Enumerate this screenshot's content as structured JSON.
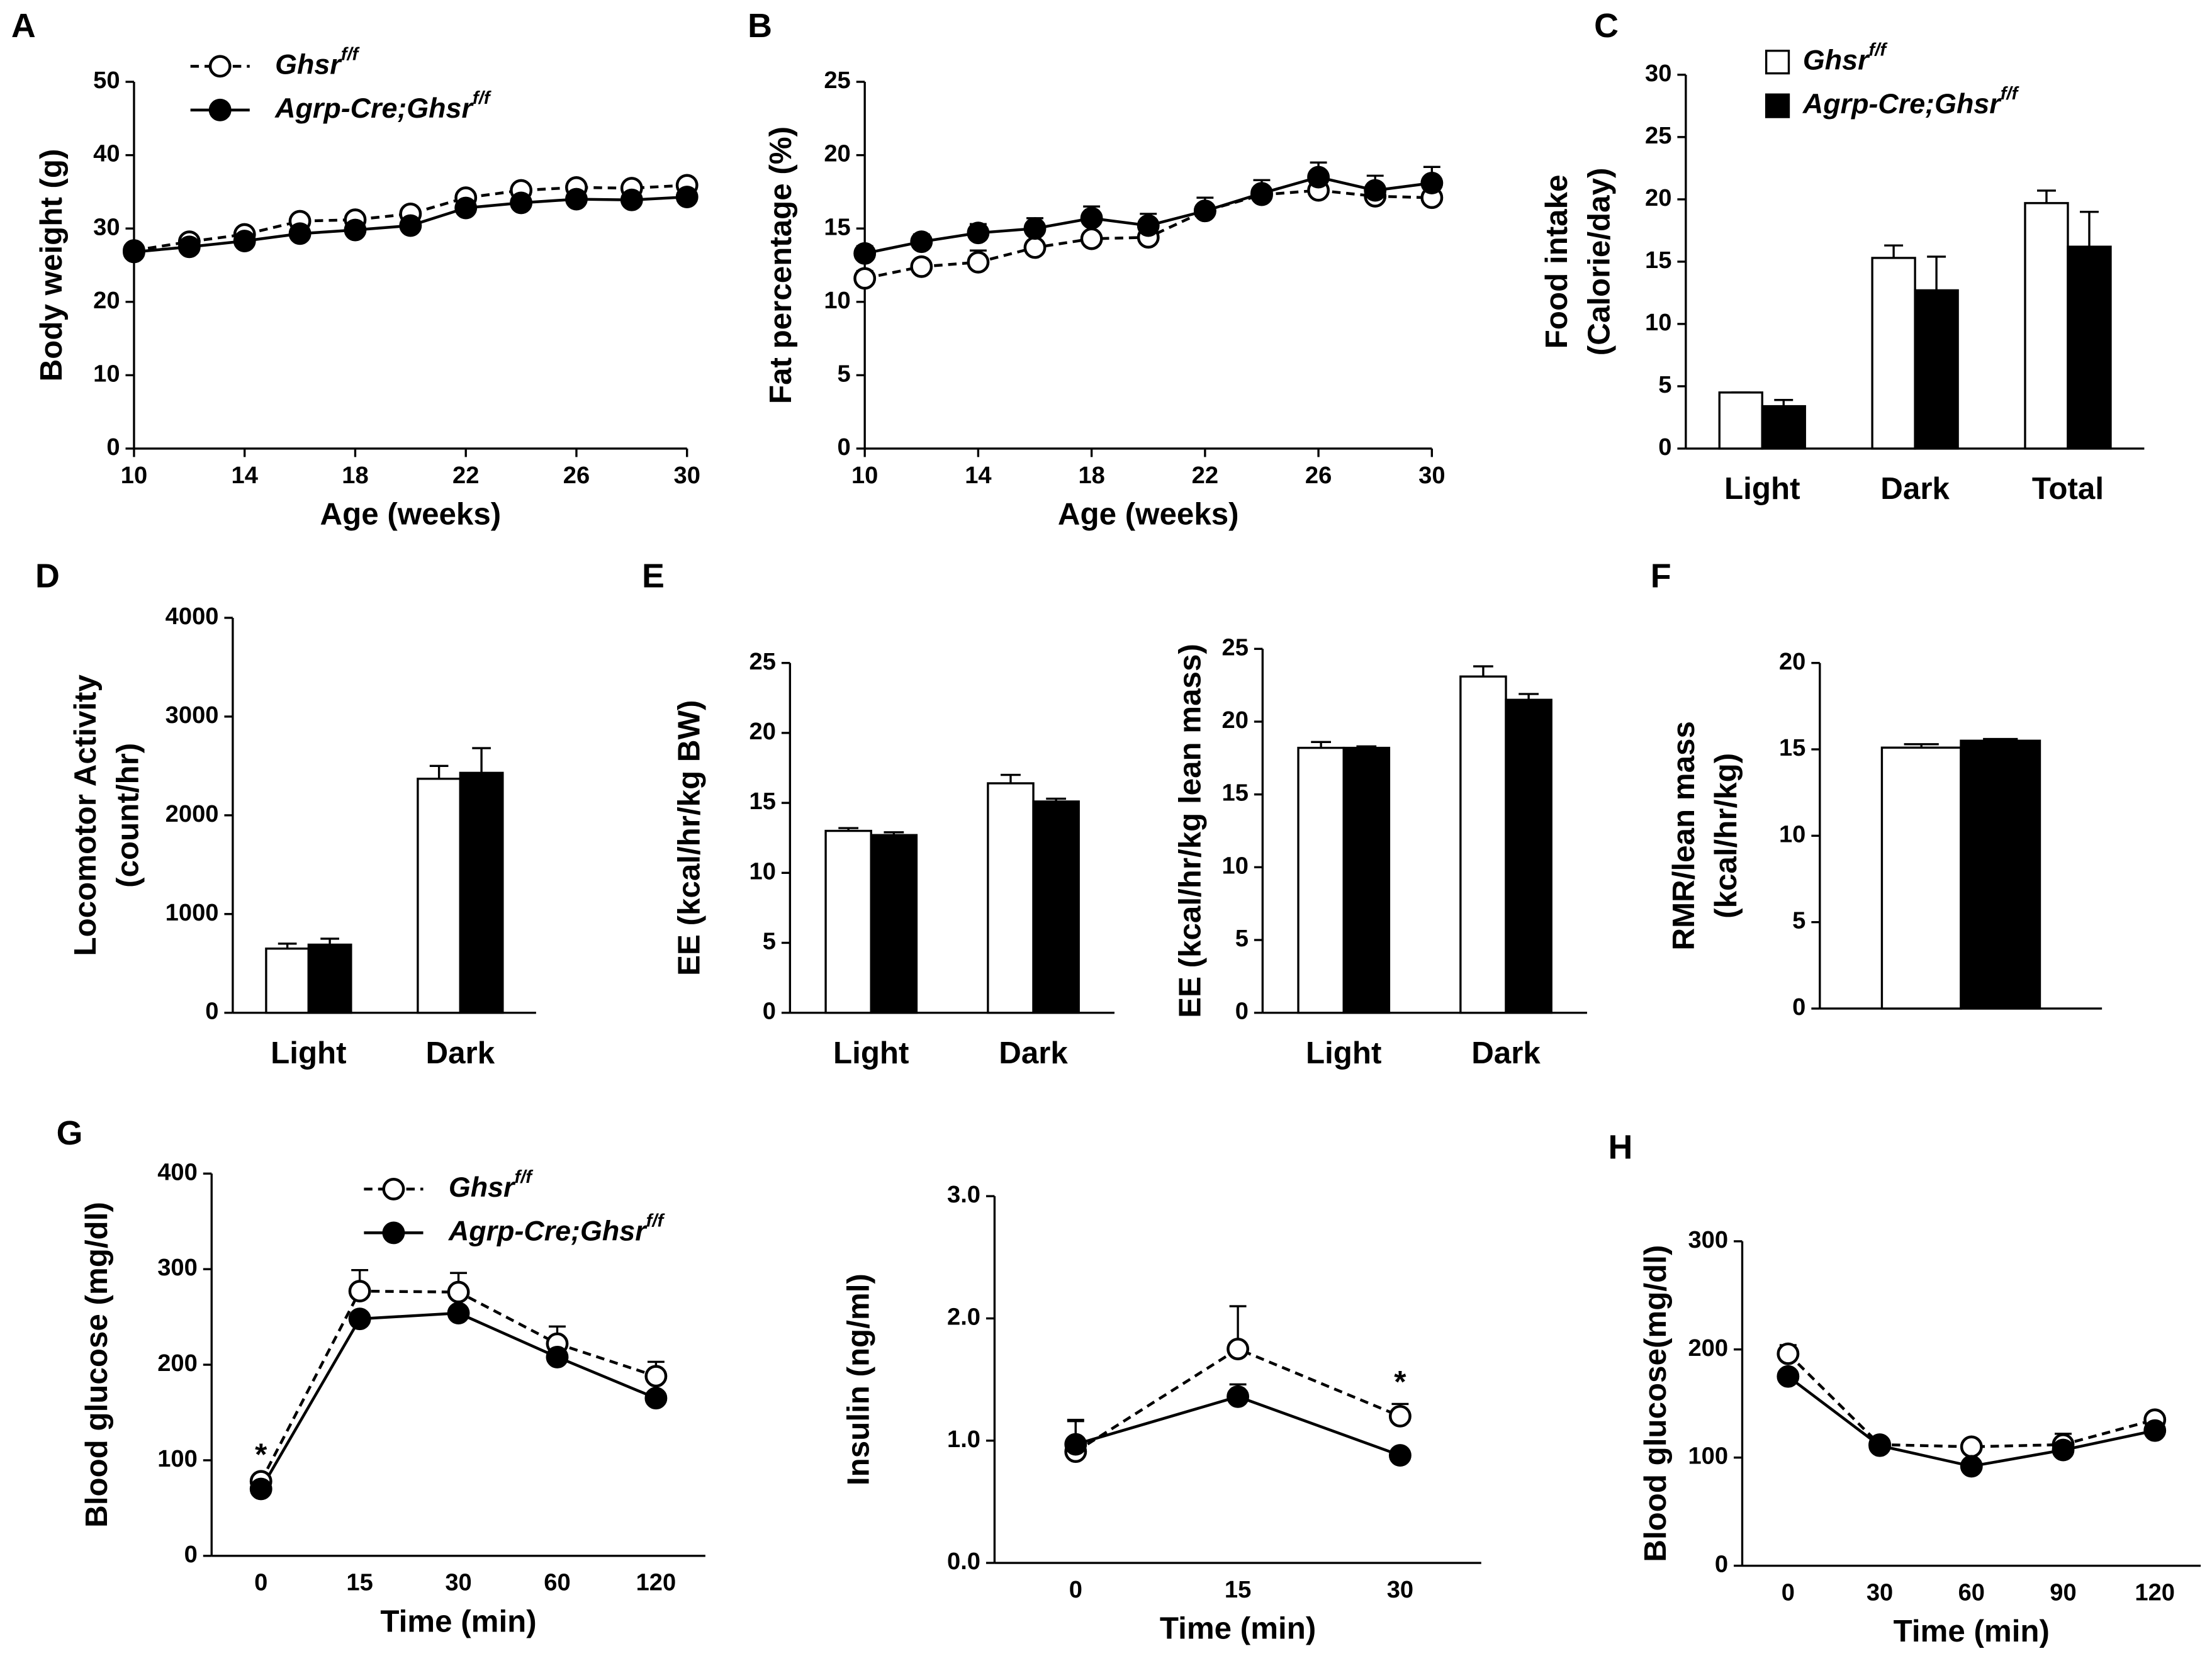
{
  "chart_data": [
    {
      "type": "line",
      "panel": "A",
      "xlabel": "Age (weeks)",
      "ylabel": "Body weight (g)",
      "x": [
        10,
        12,
        14,
        16,
        18,
        20,
        22,
        24,
        26,
        28,
        30
      ],
      "xlim": [
        10,
        30
      ],
      "xticks": [
        10,
        14,
        18,
        22,
        26,
        30
      ],
      "ylim": [
        0,
        50
      ],
      "yticks": [
        0,
        10,
        20,
        30,
        40,
        50
      ],
      "legend": "upper left",
      "series": [
        {
          "name": "Ghsr",
          "superscript": "f/f",
          "color": "#000000",
          "fill": "#ffffff",
          "linestyle": "dashed",
          "values": [
            27,
            28.2,
            29.2,
            31,
            31.2,
            32,
            34.2,
            35.2,
            35.6,
            35.5,
            35.9
          ]
        },
        {
          "name": "Agrp-Cre;Ghsr",
          "superscript": "f/f",
          "color": "#000000",
          "fill": "#000000",
          "linestyle": "solid",
          "values": [
            26.8,
            27.5,
            28.3,
            29.3,
            29.8,
            30.4,
            32.8,
            33.5,
            34,
            33.9,
            34.3
          ]
        }
      ]
    },
    {
      "type": "line",
      "panel": "B",
      "xlabel": "Age (weeks)",
      "ylabel": "Fat percentage (%)",
      "x": [
        10,
        12,
        14,
        16,
        18,
        20,
        22,
        24,
        26,
        28,
        30
      ],
      "xlim": [
        10,
        30
      ],
      "xticks": [
        10,
        14,
        18,
        22,
        26,
        30
      ],
      "ylim": [
        0,
        25
      ],
      "yticks": [
        0,
        5,
        10,
        15,
        20,
        25
      ],
      "series": [
        {
          "color": "#000000",
          "fill": "#ffffff",
          "linestyle": "dashed",
          "values": [
            11.6,
            12.4,
            12.7,
            13.7,
            14.3,
            14.4,
            16.2,
            17.3,
            17.6,
            17.2,
            17.1
          ],
          "errors": [
            0.5,
            0.4,
            0.8,
            0.3,
            0.3,
            0.4,
            0.3,
            0.5,
            0.5,
            0.5,
            0.5
          ]
        },
        {
          "color": "#000000",
          "fill": "#000000",
          "linestyle": "solid",
          "values": [
            13.3,
            14.1,
            14.7,
            15,
            15.7,
            15.2,
            16.2,
            17.4,
            18.5,
            17.6,
            18.1
          ],
          "errors": [
            0.5,
            0.5,
            0.6,
            0.7,
            0.8,
            0.8,
            0.9,
            0.9,
            1,
            1,
            1.1
          ]
        }
      ]
    },
    {
      "type": "bar",
      "panel": "C",
      "ylabel": [
        "Food intake",
        "(Calorie/day)"
      ],
      "categories": [
        "Light",
        "Dark",
        "Total"
      ],
      "ylim": [
        0,
        30
      ],
      "yticks": [
        0,
        5,
        10,
        15,
        20,
        25,
        30
      ],
      "legend": "upper left",
      "series": [
        {
          "name": "Ghsr",
          "superscript": "f/f",
          "color": "#ffffff",
          "values": [
            4.5,
            15.3,
            19.7
          ],
          "errors": [
            0,
            1.0,
            1.0
          ]
        },
        {
          "name": "Agrp-Cre;Ghsr",
          "superscript": "f/f",
          "color": "#000000",
          "values": [
            3.4,
            12.7,
            16.2
          ],
          "errors": [
            0.5,
            2.7,
            2.8
          ]
        }
      ]
    },
    {
      "type": "bar",
      "panel": "D",
      "ylabel": [
        "Locomotor Activity",
        "(count/hr)"
      ],
      "categories": [
        "Light",
        "Dark"
      ],
      "ylim": [
        0,
        4000
      ],
      "yticks": [
        0,
        1000,
        2000,
        3000,
        4000
      ],
      "series": [
        {
          "color": "#ffffff",
          "values": [
            650,
            2370
          ],
          "errors": [
            50,
            130
          ]
        },
        {
          "color": "#000000",
          "values": [
            690,
            2430
          ],
          "errors": [
            60,
            250
          ]
        }
      ]
    },
    {
      "type": "bar",
      "panel": "E",
      "ylabel": "EE (kcal/hr/kg BW)",
      "categories": [
        "Light",
        "Dark"
      ],
      "ylim": [
        0,
        25
      ],
      "yticks": [
        0,
        5,
        10,
        15,
        20,
        25
      ],
      "series": [
        {
          "color": "#ffffff",
          "values": [
            13.0,
            16.4
          ],
          "errors": [
            0.2,
            0.6
          ]
        },
        {
          "color": "#000000",
          "values": [
            12.7,
            15.1
          ],
          "errors": [
            0.2,
            0.2
          ]
        }
      ]
    },
    {
      "type": "bar",
      "ylabel": "EE (kcal/hr/kg lean mass)",
      "categories": [
        "Light",
        "Dark"
      ],
      "ylim": [
        0,
        25
      ],
      "yticks": [
        0,
        5,
        10,
        15,
        20,
        25
      ],
      "series": [
        {
          "color": "#ffffff",
          "values": [
            18.2,
            23.1
          ],
          "errors": [
            0.4,
            0.7
          ]
        },
        {
          "color": "#000000",
          "values": [
            18.2,
            21.5
          ],
          "errors": [
            0.1,
            0.4
          ]
        }
      ]
    },
    {
      "type": "bar",
      "panel": "F",
      "ylabel": [
        "RMR/lean mass",
        "(kcal/hr/kg)"
      ],
      "categories": [
        null
      ],
      "ylim": [
        0,
        20
      ],
      "yticks": [
        0,
        5,
        10,
        15,
        20
      ],
      "series": [
        {
          "color": "#ffffff",
          "values": [
            15.1
          ],
          "errors": [
            0.2
          ]
        },
        {
          "color": "#000000",
          "values": [
            15.5
          ],
          "errors": [
            0.1
          ]
        }
      ]
    },
    {
      "type": "line",
      "panel": "G",
      "xlabel": "Time (min)",
      "ylabel": "Blood glucose (mg/dl)",
      "categories": [
        "0",
        "15",
        "30",
        "60",
        "120"
      ],
      "ylim": [
        0,
        400
      ],
      "yticks": [
        0,
        100,
        200,
        300,
        400
      ],
      "legend": "upper left",
      "annotations": [
        {
          "text": "*",
          "x": "0"
        }
      ],
      "series": [
        {
          "name": "Ghsr",
          "superscript": "f/f",
          "color": "#000000",
          "fill": "#ffffff",
          "linestyle": "dashed",
          "values": [
            78,
            277,
            276,
            222,
            188
          ],
          "errors": [
            5,
            22,
            20,
            18,
            15
          ]
        },
        {
          "name": "Agrp-Cre;Ghsr",
          "superscript": "f/f",
          "color": "#000000",
          "fill": "#000000",
          "linestyle": "solid",
          "values": [
            70,
            248,
            254,
            208,
            165
          ],
          "errors": [
            3,
            5,
            5,
            5,
            5
          ]
        }
      ]
    },
    {
      "type": "line",
      "xlabel": "Time (min)",
      "ylabel": "Insulin (ng/ml)",
      "categories": [
        "0",
        "15",
        "30"
      ],
      "ylim": [
        0,
        3
      ],
      "yticks": [
        {
          "value": 0,
          "label": "0.0"
        },
        {
          "value": 1,
          "label": "1.0"
        },
        {
          "value": 2,
          "label": "2.0"
        },
        {
          "value": 3,
          "label": "3.0"
        }
      ],
      "annotations": [
        {
          "text": "*",
          "x": "30"
        }
      ],
      "series": [
        {
          "color": "#000000",
          "fill": "#ffffff",
          "linestyle": "dashed",
          "values": [
            0.91,
            1.75,
            1.2
          ],
          "errors": [
            0.25,
            0.35,
            0.1
          ]
        },
        {
          "color": "#000000",
          "fill": "#000000",
          "linestyle": "solid",
          "values": [
            0.97,
            1.36,
            0.88
          ],
          "errors": [
            0.2,
            0.1,
            0.03
          ]
        }
      ]
    },
    {
      "type": "line",
      "panel": "H",
      "xlabel": "Time (min)",
      "ylabel": "Blood glucose(mg/dl)",
      "categories": [
        "0",
        "30",
        "60",
        "90",
        "120"
      ],
      "ylim": [
        0,
        300
      ],
      "yticks": [
        0,
        100,
        200,
        300
      ],
      "series": [
        {
          "color": "#000000",
          "fill": "#ffffff",
          "linestyle": "dashed",
          "values": [
            196,
            112,
            110,
            112,
            135
          ],
          "errors": [
            8,
            4,
            4,
            10,
            5
          ]
        },
        {
          "color": "#000000",
          "fill": "#000000",
          "linestyle": "solid",
          "values": [
            175,
            111,
            92,
            107,
            125
          ],
          "errors": [
            5,
            4,
            4,
            5,
            5
          ]
        }
      ]
    }
  ]
}
